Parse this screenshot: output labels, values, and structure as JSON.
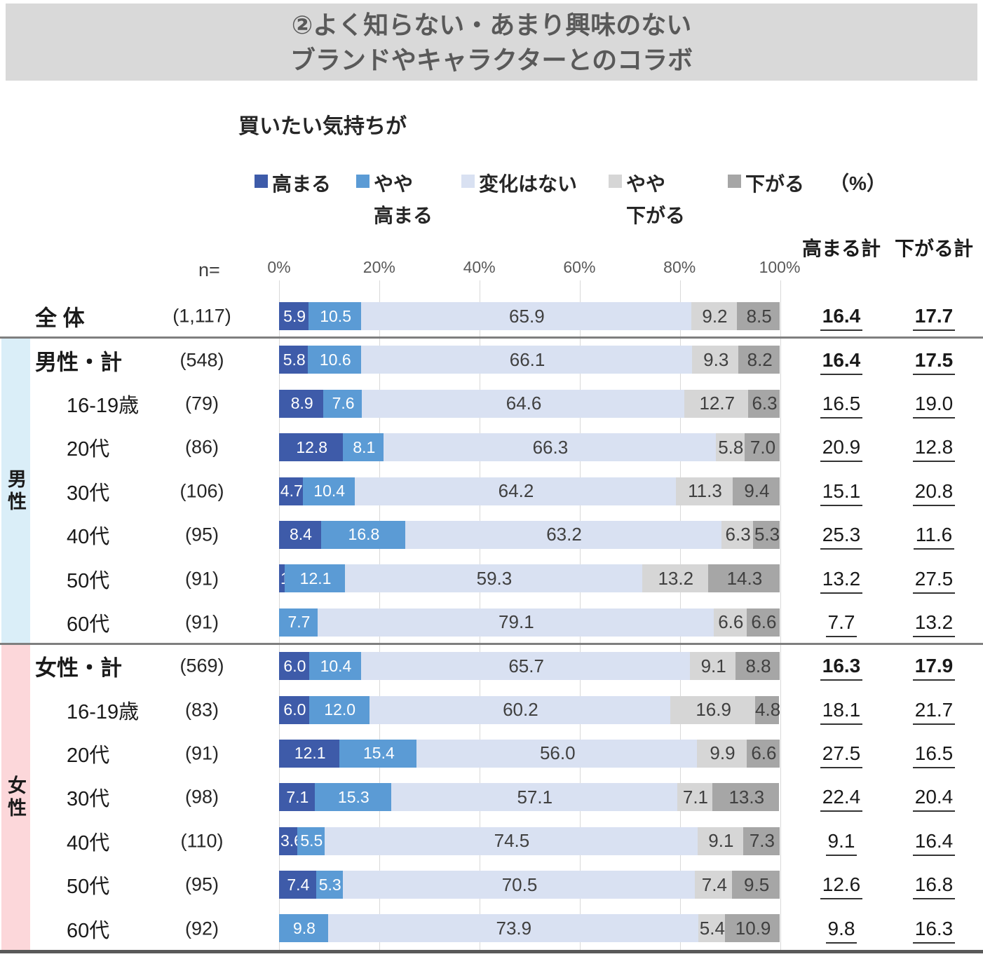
{
  "title": {
    "line1": "②よく知らない・あまり興味のない",
    "line2": "ブランドやキャラクターとのコラボ"
  },
  "subtitle": "買いたい気持ちが",
  "unit_label": "（%）",
  "n_header": "n=",
  "totals_headers": {
    "up": "高まる計",
    "down": "下がる計"
  },
  "legend": [
    {
      "label": "高まる",
      "color": "#3e5ba9"
    },
    {
      "label": "やや\n高まる",
      "color": "#5b9bd5"
    },
    {
      "label": "変化はない",
      "color": "#d9e1f2"
    },
    {
      "label": "やや\n下がる",
      "color": "#d6d6d6"
    },
    {
      "label": "下がる",
      "color": "#a6a6a6"
    }
  ],
  "chart_data": {
    "type": "bar",
    "stacked": true,
    "orientation": "horizontal",
    "unit": "%",
    "xlim": [
      0,
      100
    ],
    "axis_ticks": [
      "0%",
      "20%",
      "40%",
      "60%",
      "80%",
      "100%"
    ],
    "series_names": [
      "高まる",
      "やや高まる",
      "変化はない",
      "やや下がる",
      "下がる"
    ],
    "series_colors": [
      "#3e5ba9",
      "#5b9bd5",
      "#d9e1f2",
      "#d6d6d6",
      "#a6a6a6"
    ],
    "sections": [
      {
        "id": "male",
        "label": "男性",
        "color": "#daeef8"
      },
      {
        "id": "female",
        "label": "女性",
        "color": "#fcd7da"
      }
    ],
    "rows": [
      {
        "label": "全 体",
        "n": "(1,117)",
        "values": [
          5.9,
          10.5,
          65.9,
          9.2,
          8.5
        ],
        "up_total": 16.4,
        "down_total": 17.7,
        "emphasis": true,
        "section": "all"
      },
      {
        "label": "男性・計",
        "n": "(548)",
        "values": [
          5.8,
          10.6,
          66.1,
          9.3,
          8.2
        ],
        "up_total": 16.4,
        "down_total": 17.5,
        "emphasis": true,
        "section": "male"
      },
      {
        "label": "16-19歳",
        "n": "(79)",
        "values": [
          8.9,
          7.6,
          64.6,
          12.7,
          6.3
        ],
        "up_total": 16.5,
        "down_total": 19.0,
        "emphasis": false,
        "section": "male"
      },
      {
        "label": "20代",
        "n": "(86)",
        "values": [
          12.8,
          8.1,
          66.3,
          5.8,
          7.0
        ],
        "up_total": 20.9,
        "down_total": 12.8,
        "emphasis": false,
        "section": "male"
      },
      {
        "label": "30代",
        "n": "(106)",
        "values": [
          4.7,
          10.4,
          64.2,
          11.3,
          9.4
        ],
        "up_total": 15.1,
        "down_total": 20.8,
        "emphasis": false,
        "section": "male"
      },
      {
        "label": "40代",
        "n": "(95)",
        "values": [
          8.4,
          16.8,
          63.2,
          6.3,
          5.3
        ],
        "up_total": 25.3,
        "down_total": 11.6,
        "emphasis": false,
        "section": "male"
      },
      {
        "label": "50代",
        "n": "(91)",
        "values": [
          1.1,
          12.1,
          59.3,
          13.2,
          14.3
        ],
        "up_total": 13.2,
        "down_total": 27.5,
        "emphasis": false,
        "section": "male"
      },
      {
        "label": "60代",
        "n": "(91)",
        "values": [
          0,
          7.7,
          79.1,
          6.6,
          6.6
        ],
        "up_total": 7.7,
        "down_total": 13.2,
        "emphasis": false,
        "section": "male"
      },
      {
        "label": "女性・計",
        "n": "(569)",
        "values": [
          6.0,
          10.4,
          65.7,
          9.1,
          8.8
        ],
        "up_total": 16.3,
        "down_total": 17.9,
        "emphasis": true,
        "section": "female"
      },
      {
        "label": "16-19歳",
        "n": "(83)",
        "values": [
          6.0,
          12.0,
          60.2,
          16.9,
          4.8
        ],
        "up_total": 18.1,
        "down_total": 21.7,
        "emphasis": false,
        "section": "female"
      },
      {
        "label": "20代",
        "n": "(91)",
        "values": [
          12.1,
          15.4,
          56.0,
          9.9,
          6.6
        ],
        "up_total": 27.5,
        "down_total": 16.5,
        "emphasis": false,
        "section": "female"
      },
      {
        "label": "30代",
        "n": "(98)",
        "values": [
          7.1,
          15.3,
          57.1,
          7.1,
          13.3
        ],
        "up_total": 22.4,
        "down_total": 20.4,
        "emphasis": false,
        "section": "female"
      },
      {
        "label": "40代",
        "n": "(110)",
        "values": [
          3.6,
          5.5,
          74.5,
          9.1,
          7.3
        ],
        "up_total": 9.1,
        "down_total": 16.4,
        "emphasis": false,
        "section": "female"
      },
      {
        "label": "50代",
        "n": "(95)",
        "values": [
          7.4,
          5.3,
          70.5,
          7.4,
          9.5
        ],
        "up_total": 12.6,
        "down_total": 16.8,
        "emphasis": false,
        "section": "female"
      },
      {
        "label": "60代",
        "n": "(92)",
        "values": [
          0,
          9.8,
          73.9,
          5.4,
          10.9
        ],
        "up_total": 9.8,
        "down_total": 16.3,
        "emphasis": false,
        "section": "female"
      }
    ]
  }
}
